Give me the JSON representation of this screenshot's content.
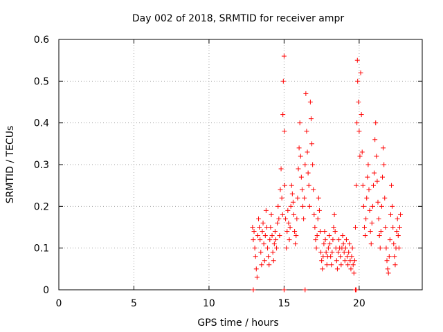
{
  "chart_data": {
    "type": "scatter",
    "title": "Day 002 of 2018, SRMTID for receiver ampr",
    "xlabel": "GPS time / hours",
    "ylabel": "SRMTID / TECUs",
    "xlim": [
      0,
      24.2
    ],
    "ylim": [
      0,
      0.6
    ],
    "x_ticks": [
      "0",
      "5",
      "10",
      "15",
      "20"
    ],
    "y_ticks": [
      "0",
      "0.1",
      "0.2",
      "0.3",
      "0.4",
      "0.5",
      "0.6"
    ],
    "grid": true,
    "marker": "+",
    "color": "#ff0000",
    "x_tick_values": [
      0,
      5,
      10,
      15,
      20
    ],
    "y_tick_values": [
      0,
      0.1,
      0.2,
      0.3,
      0.4,
      0.5,
      0.6
    ],
    "series": [
      {
        "name": "SRMTID",
        "points": [
          [
            12.9,
            0.15
          ],
          [
            12.95,
            0.12
          ],
          [
            13.0,
            0.14
          ],
          [
            13.05,
            0.1
          ],
          [
            13.1,
            0.08
          ],
          [
            13.15,
            0.05
          ],
          [
            13.2,
            0.03
          ],
          [
            13.25,
            0.13
          ],
          [
            13.3,
            0.17
          ],
          [
            13.35,
            0.15
          ],
          [
            13.4,
            0.12
          ],
          [
            13.45,
            0.09
          ],
          [
            13.5,
            0.06
          ],
          [
            13.55,
            0.14
          ],
          [
            13.6,
            0.16
          ],
          [
            13.65,
            0.11
          ],
          [
            13.7,
            0.07
          ],
          [
            13.75,
            0.13
          ],
          [
            13.8,
            0.19
          ],
          [
            13.85,
            0.15
          ],
          [
            13.9,
            0.1
          ],
          [
            13.95,
            0.08
          ],
          [
            14.0,
            0.06
          ],
          [
            14.05,
            0.12
          ],
          [
            14.1,
            0.15
          ],
          [
            14.15,
            0.18
          ],
          [
            14.2,
            0.13
          ],
          [
            14.25,
            0.09
          ],
          [
            14.3,
            0.07
          ],
          [
            14.35,
            0.11
          ],
          [
            14.4,
            0.14
          ],
          [
            14.45,
            0.12
          ],
          [
            14.5,
            0.1
          ],
          [
            14.55,
            0.16
          ],
          [
            14.6,
            0.2
          ],
          [
            14.65,
            0.17
          ],
          [
            14.7,
            0.13
          ],
          [
            14.75,
            0.24
          ],
          [
            14.8,
            0.29
          ],
          [
            14.85,
            0.22
          ],
          [
            14.9,
            0.18
          ],
          [
            14.92,
            0.42
          ],
          [
            14.95,
            0.5
          ],
          [
            15.0,
            0.56
          ],
          [
            15.02,
            0.38
          ],
          [
            15.05,
            0.25
          ],
          [
            15.1,
            0.17
          ],
          [
            15.15,
            0.1
          ],
          [
            15.2,
            0.14
          ],
          [
            15.25,
            0.19
          ],
          [
            15.3,
            0.16
          ],
          [
            15.35,
            0.12
          ],
          [
            15.4,
            0.15
          ],
          [
            15.45,
            0.2
          ],
          [
            15.5,
            0.25
          ],
          [
            15.55,
            0.23
          ],
          [
            15.6,
            0.21
          ],
          [
            15.65,
            0.18
          ],
          [
            15.7,
            0.14
          ],
          [
            15.75,
            0.11
          ],
          [
            15.8,
            0.13
          ],
          [
            15.85,
            0.17
          ],
          [
            15.9,
            0.22
          ],
          [
            15.95,
            0.29
          ],
          [
            16.0,
            0.34
          ],
          [
            16.05,
            0.4
          ],
          [
            16.1,
            0.32
          ],
          [
            16.15,
            0.27
          ],
          [
            16.2,
            0.24
          ],
          [
            16.25,
            0.2
          ],
          [
            16.3,
            0.17
          ],
          [
            16.35,
            0.22
          ],
          [
            16.4,
            0.3
          ],
          [
            16.45,
            0.47
          ],
          [
            16.5,
            0.38
          ],
          [
            16.55,
            0.33
          ],
          [
            16.6,
            0.28
          ],
          [
            16.65,
            0.25
          ],
          [
            16.7,
            0.2
          ],
          [
            16.75,
            0.45
          ],
          [
            16.8,
            0.41
          ],
          [
            16.85,
            0.35
          ],
          [
            16.9,
            0.3
          ],
          [
            16.95,
            0.24
          ],
          [
            17.0,
            0.18
          ],
          [
            17.05,
            0.15
          ],
          [
            17.1,
            0.12
          ],
          [
            17.15,
            0.1
          ],
          [
            17.2,
            0.13
          ],
          [
            17.25,
            0.17
          ],
          [
            17.3,
            0.22
          ],
          [
            17.35,
            0.19
          ],
          [
            17.4,
            0.14
          ],
          [
            17.45,
            0.09
          ],
          [
            17.5,
            0.07
          ],
          [
            17.55,
            0.05
          ],
          [
            17.6,
            0.08
          ],
          [
            17.65,
            0.11
          ],
          [
            17.7,
            0.14
          ],
          [
            17.75,
            0.12
          ],
          [
            17.8,
            0.09
          ],
          [
            17.85,
            0.06
          ],
          [
            17.9,
            0.08
          ],
          [
            17.95,
            0.1
          ],
          [
            18.0,
            0.13
          ],
          [
            18.05,
            0.11
          ],
          [
            18.1,
            0.08
          ],
          [
            18.15,
            0.06
          ],
          [
            18.2,
            0.09
          ],
          [
            18.25,
            0.12
          ],
          [
            18.3,
            0.15
          ],
          [
            18.35,
            0.18
          ],
          [
            18.4,
            0.14
          ],
          [
            18.45,
            0.1
          ],
          [
            18.5,
            0.07
          ],
          [
            18.55,
            0.05
          ],
          [
            18.6,
            0.09
          ],
          [
            18.65,
            0.12
          ],
          [
            18.7,
            0.1
          ],
          [
            18.75,
            0.08
          ],
          [
            18.8,
            0.06
          ],
          [
            18.85,
            0.1
          ],
          [
            18.9,
            0.13
          ],
          [
            18.95,
            0.11
          ],
          [
            19.0,
            0.09
          ],
          [
            19.05,
            0.07
          ],
          [
            19.1,
            0.1
          ],
          [
            19.15,
            0.12
          ],
          [
            19.2,
            0.08
          ],
          [
            19.25,
            0.06
          ],
          [
            19.3,
            0.09
          ],
          [
            19.35,
            0.11
          ],
          [
            19.4,
            0.07
          ],
          [
            19.45,
            0.05
          ],
          [
            19.5,
            0.08
          ],
          [
            19.55,
            0.1
          ],
          [
            19.6,
            0.06
          ],
          [
            19.65,
            0.04
          ],
          [
            19.7,
            0.07
          ],
          [
            19.75,
            0.15
          ],
          [
            19.8,
            0.25
          ],
          [
            19.85,
            0.4
          ],
          [
            19.88,
            0.55
          ],
          [
            19.9,
            0.5
          ],
          [
            19.95,
            0.45
          ],
          [
            20.0,
            0.38
          ],
          [
            20.05,
            0.32
          ],
          [
            20.1,
            0.52
          ],
          [
            20.15,
            0.42
          ],
          [
            20.2,
            0.33
          ],
          [
            20.25,
            0.25
          ],
          [
            20.3,
            0.2
          ],
          [
            20.35,
            0.15
          ],
          [
            20.4,
            0.13
          ],
          [
            20.45,
            0.17
          ],
          [
            20.5,
            0.22
          ],
          [
            20.55,
            0.27
          ],
          [
            20.6,
            0.3
          ],
          [
            20.65,
            0.24
          ],
          [
            20.7,
            0.19
          ],
          [
            20.75,
            0.14
          ],
          [
            20.8,
            0.11
          ],
          [
            20.85,
            0.16
          ],
          [
            20.9,
            0.2
          ],
          [
            20.95,
            0.25
          ],
          [
            21.0,
            0.28
          ],
          [
            21.05,
            0.36
          ],
          [
            21.1,
            0.4
          ],
          [
            21.15,
            0.32
          ],
          [
            21.2,
            0.26
          ],
          [
            21.25,
            0.21
          ],
          [
            21.3,
            0.17
          ],
          [
            21.35,
            0.13
          ],
          [
            21.4,
            0.1
          ],
          [
            21.45,
            0.14
          ],
          [
            21.5,
            0.2
          ],
          [
            21.55,
            0.27
          ],
          [
            21.6,
            0.34
          ],
          [
            21.65,
            0.3
          ],
          [
            21.7,
            0.22
          ],
          [
            21.75,
            0.15
          ],
          [
            21.8,
            0.1
          ],
          [
            21.85,
            0.07
          ],
          [
            21.9,
            0.05
          ],
          [
            21.95,
            0.04
          ],
          [
            22.0,
            0.08
          ],
          [
            22.05,
            0.12
          ],
          [
            22.1,
            0.18
          ],
          [
            22.15,
            0.25
          ],
          [
            22.2,
            0.2
          ],
          [
            22.25,
            0.15
          ],
          [
            22.3,
            0.11
          ],
          [
            22.35,
            0.08
          ],
          [
            22.4,
            0.06
          ],
          [
            22.45,
            0.1
          ],
          [
            22.5,
            0.14
          ],
          [
            22.55,
            0.17
          ],
          [
            22.6,
            0.13
          ],
          [
            22.65,
            0.1
          ],
          [
            22.7,
            0.15
          ],
          [
            22.75,
            0.18
          ],
          [
            12.95,
            0.0
          ],
          [
            15.0,
            0.0
          ],
          [
            16.4,
            0.0
          ],
          [
            19.75,
            0.0
          ],
          [
            19.8,
            0.0
          ]
        ]
      }
    ]
  }
}
